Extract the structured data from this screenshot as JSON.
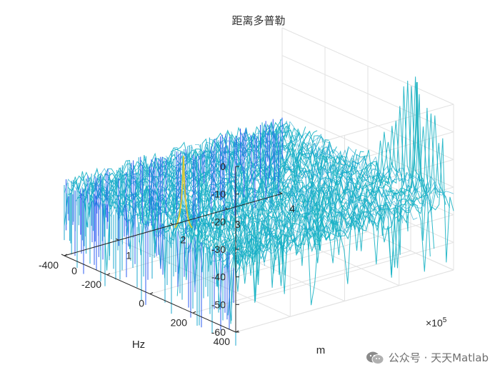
{
  "chart_data": {
    "type": "surface",
    "title": "距离多普勒",
    "xlabel": "m",
    "ylabel": "Hz",
    "zlabel": "",
    "x_range": [
      0,
      400000
    ],
    "y_range": [
      -400,
      400
    ],
    "z_range": [
      -60,
      0
    ],
    "x_ticks": [
      "0",
      "1",
      "2",
      "3",
      "4"
    ],
    "x_exponent_text": "×10",
    "x_exponent_power": "5",
    "y_ticks": [
      "-400",
      "-200",
      "0",
      "200",
      "400"
    ],
    "z_ticks": [
      "-60",
      "-50",
      "-40",
      "-30",
      "-20",
      "-10",
      "0"
    ],
    "noise_floor_db": -35,
    "colormap": "parula",
    "peaks": [
      {
        "range_m": 30000,
        "doppler_hz": 80,
        "level_db": -9
      },
      {
        "range_m": 380000,
        "doppler_hz": 280,
        "level_db": 5
      }
    ],
    "grid": true
  },
  "watermark": {
    "icon": "wechat-icon",
    "text": "公众号 · 天天Matlab"
  }
}
